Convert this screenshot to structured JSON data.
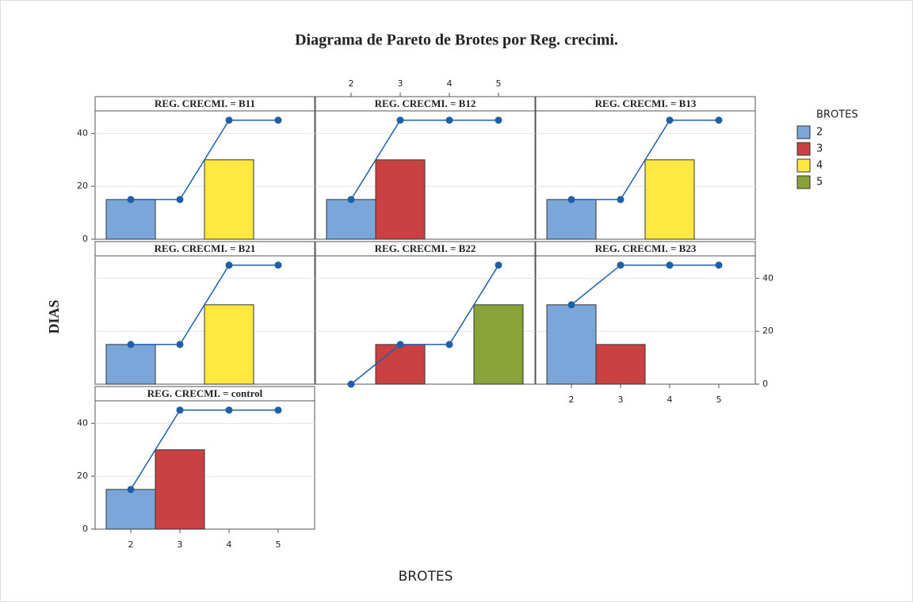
{
  "chart_data": {
    "type": "pareto",
    "title": "Diagrama de Pareto de Brotes por Reg. crecimi.",
    "x_label": "BROTES",
    "y_label": "DIAS",
    "legend_title": "BROTES",
    "categories": [
      "2",
      "3",
      "4",
      "5"
    ],
    "colors": [
      "#7ba6da",
      "#c94141",
      "#ffe83f",
      "#89a33a"
    ],
    "line_color": "#1f5fa8",
    "ylim": [
      0,
      48.5
    ],
    "yticks": [
      0,
      20,
      40
    ],
    "grid": true,
    "panels": [
      {
        "label": "REG. CRECMI. = B11",
        "values": [
          15,
          0,
          30,
          0
        ]
      },
      {
        "label": "REG. CRECMI. = B12",
        "values": [
          15,
          30,
          0,
          0
        ]
      },
      {
        "label": "REG. CRECMI. = B13",
        "values": [
          15,
          0,
          30,
          0
        ]
      },
      {
        "label": "REG. CRECMI. = B21",
        "values": [
          15,
          0,
          30,
          0
        ]
      },
      {
        "label": "REG. CRECMI. = B22",
        "values": [
          0,
          15,
          0,
          30
        ]
      },
      {
        "label": "REG. CRECMI. = B23",
        "values": [
          30,
          15,
          0,
          0
        ]
      },
      {
        "label": "REG. CRECMI. = control",
        "values": [
          15,
          30,
          0,
          0
        ]
      }
    ]
  }
}
